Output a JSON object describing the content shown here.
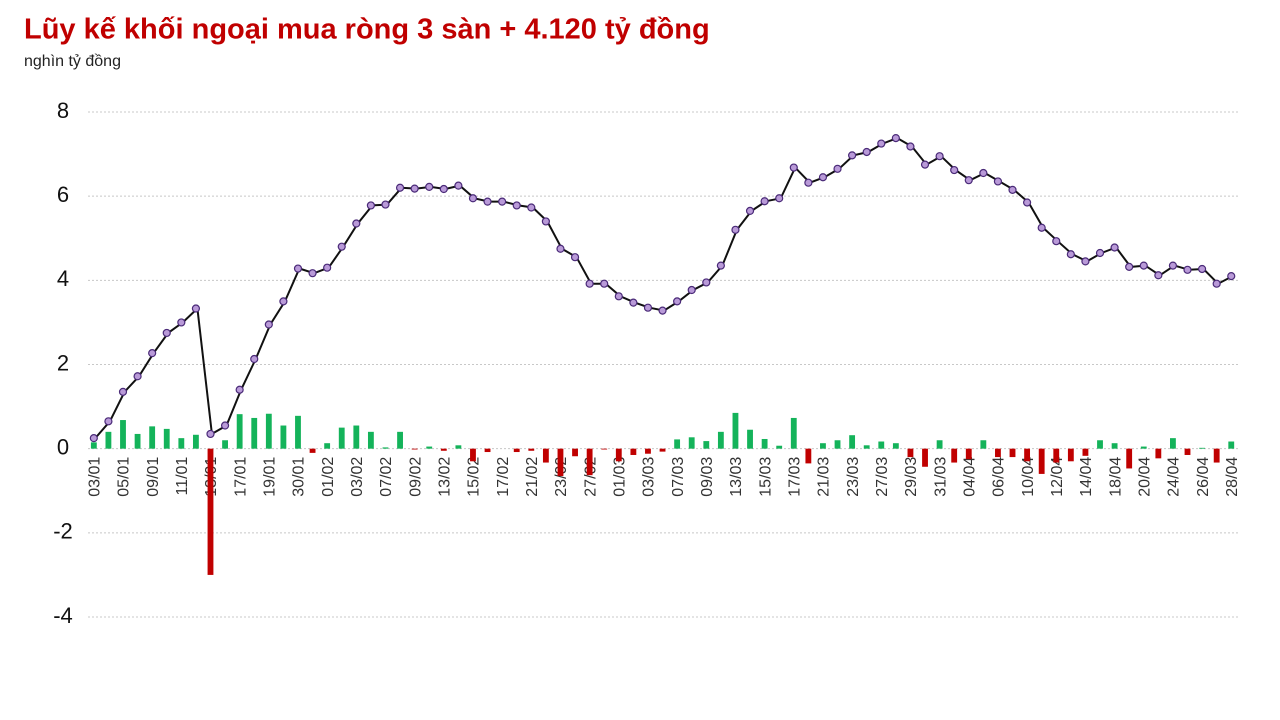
{
  "chart_data": {
    "type": "combo",
    "title": "Lũy kế khối ngoại mua ròng 3 sàn + 4.120 tỷ đồng",
    "subtitle": "nghìn tỷ đồng",
    "categories": [
      "03/01",
      null,
      "05/01",
      null,
      "09/01",
      null,
      "11/01",
      null,
      "13/01",
      null,
      "17/01",
      null,
      "19/01",
      null,
      "30/01",
      null,
      "01/02",
      null,
      "03/02",
      null,
      "07/02",
      null,
      "09/02",
      null,
      "13/02",
      null,
      "15/02",
      null,
      "17/02",
      null,
      "21/02",
      null,
      "23/02",
      null,
      "27/02",
      null,
      "01/03",
      null,
      "03/03",
      null,
      "07/03",
      null,
      "09/03",
      null,
      "13/03",
      null,
      "15/03",
      null,
      "17/03",
      null,
      "21/03",
      null,
      "23/03",
      null,
      "27/03",
      null,
      "29/03",
      null,
      "31/03",
      null,
      "04/04",
      null,
      "06/04",
      null,
      "10/04",
      null,
      "12/04",
      null,
      "14/04",
      null,
      "18/04",
      null,
      "20/04",
      null,
      "24/04",
      null,
      "26/04",
      null,
      "28/04"
    ],
    "series": [
      {
        "type": "bar",
        "positive_color": "#14b35a",
        "negative_color": "#c00000",
        "values": [
          0.15,
          0.4,
          0.68,
          0.35,
          0.53,
          0.47,
          0.25,
          0.33,
          -3.0,
          0.2,
          0.82,
          0.73,
          0.83,
          0.55,
          0.78,
          -0.1,
          0.13,
          0.5,
          0.55,
          0.4,
          0.03,
          0.4,
          -0.02,
          0.05,
          -0.05,
          0.08,
          -0.3,
          -0.08,
          0,
          -0.08,
          -0.05,
          -0.33,
          -0.65,
          -0.18,
          -0.63,
          -0.02,
          -0.3,
          -0.15,
          -0.12,
          -0.07,
          0.22,
          0.27,
          0.18,
          0.4,
          0.85,
          0.45,
          0.23,
          0.07,
          0.73,
          -0.35,
          0.13,
          0.2,
          0.32,
          0.08,
          0.17,
          0.13,
          -0.2,
          -0.43,
          0.2,
          -0.33,
          -0.25,
          0.2,
          -0.2,
          -0.2,
          -0.3,
          -0.6,
          -0.33,
          -0.3,
          -0.17,
          0.2,
          0.13,
          -0.47,
          0.05,
          -0.23,
          0.25,
          -0.15,
          0.02,
          -0.33,
          0.17
        ]
      },
      {
        "type": "line",
        "color": "#111111",
        "marker_color": "#b99ad8",
        "marker_edge": "#4a2a78",
        "values": [
          0.25,
          0.65,
          1.35,
          1.72,
          2.27,
          2.75,
          3.0,
          3.33,
          0.35,
          0.55,
          1.4,
          2.13,
          2.95,
          3.5,
          4.28,
          4.17,
          4.3,
          4.8,
          5.35,
          5.78,
          5.8,
          6.2,
          6.18,
          6.22,
          6.17,
          6.25,
          5.95,
          5.87,
          5.87,
          5.78,
          5.73,
          5.4,
          4.75,
          4.55,
          3.92,
          3.92,
          3.62,
          3.47,
          3.35,
          3.28,
          3.5,
          3.77,
          3.95,
          4.35,
          5.2,
          5.65,
          5.88,
          5.95,
          6.68,
          6.32,
          6.45,
          6.65,
          6.97,
          7.05,
          7.25,
          7.38,
          7.18,
          6.75,
          6.95,
          6.62,
          6.38,
          6.55,
          6.35,
          6.15,
          5.85,
          5.25,
          4.93,
          4.62,
          4.45,
          4.65,
          4.78,
          4.32,
          4.35,
          4.12,
          4.35,
          4.25,
          4.27,
          3.92,
          4.1
        ]
      }
    ],
    "ylim": [
      -4,
      8
    ],
    "yticks": [
      8,
      6,
      4,
      2,
      0,
      -2,
      -4
    ],
    "grid": true
  }
}
